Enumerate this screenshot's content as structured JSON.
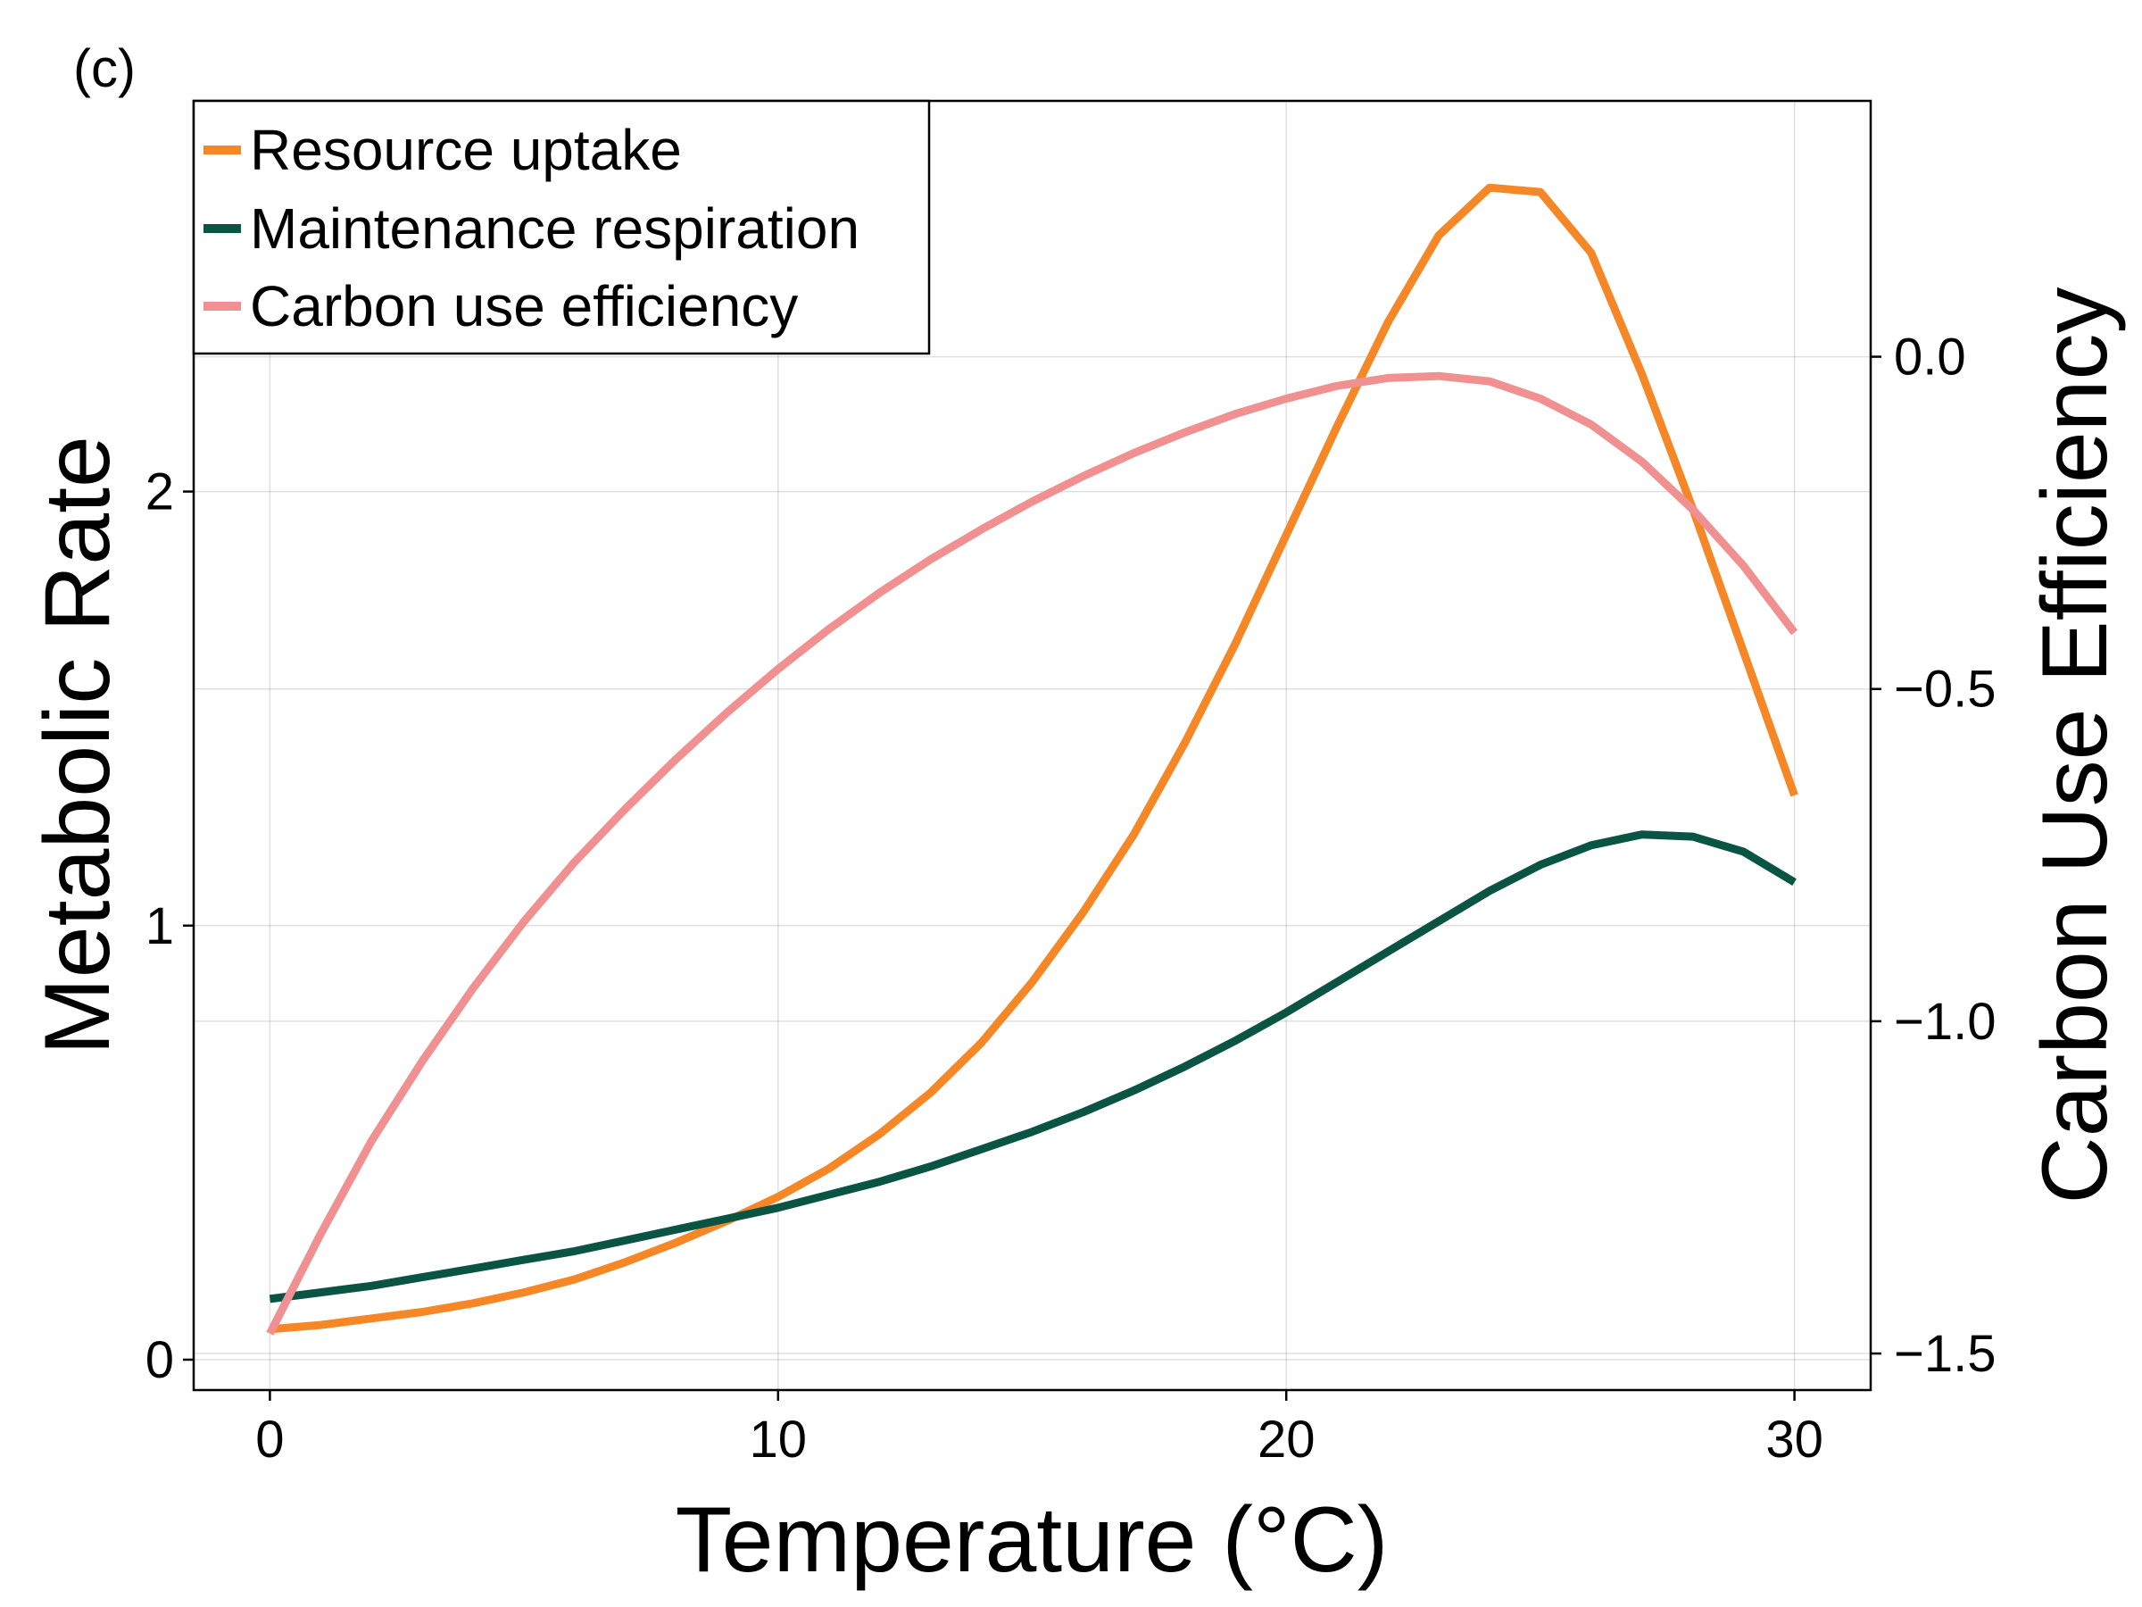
{
  "panel_label": "(c)",
  "chart_data": {
    "type": "line",
    "xlabel": "Temperature (°C)",
    "ylabel_left": "Metabolic Rate",
    "ylabel_right": "Carbon Use Efficiency",
    "xlim": [
      -1.5,
      31.5
    ],
    "ylim_left": [
      -0.07,
      2.9
    ],
    "ylim_right": [
      -1.555,
      0.385
    ],
    "x_ticks": [
      0,
      10,
      20,
      30
    ],
    "x_tick_labels": [
      "0",
      "10",
      "20",
      "30"
    ],
    "y_left_ticks": [
      0,
      1,
      2
    ],
    "y_left_tick_labels": [
      "0",
      "1",
      "2"
    ],
    "y_right_ticks": [
      0.0,
      -0.5,
      -1.0,
      -1.5
    ],
    "y_right_tick_labels": [
      "0.0",
      "−0.5",
      "−1.0",
      "−1.5"
    ],
    "grid": true,
    "legend_position": "top-left",
    "x": [
      0,
      1,
      2,
      3,
      4,
      5,
      6,
      7,
      8,
      9,
      10,
      11,
      12,
      13,
      14,
      15,
      16,
      17,
      18,
      19,
      20,
      21,
      22,
      23,
      24,
      25,
      26,
      27,
      28,
      29,
      30
    ],
    "series": [
      {
        "name": "Resource uptake",
        "axis": "left",
        "color": "#f58727",
        "values": [
          0.07,
          0.08,
          0.095,
          0.11,
          0.13,
          0.155,
          0.185,
          0.225,
          0.27,
          0.32,
          0.375,
          0.44,
          0.52,
          0.615,
          0.73,
          0.87,
          1.03,
          1.21,
          1.42,
          1.65,
          1.9,
          2.15,
          2.39,
          2.59,
          2.7,
          2.69,
          2.55,
          2.27,
          1.96,
          1.63,
          1.3
        ],
        "line_width": 9
      },
      {
        "name": "Maintenance respiration",
        "axis": "left",
        "color": "#0a5444",
        "values": [
          0.14,
          0.155,
          0.17,
          0.19,
          0.21,
          0.23,
          0.25,
          0.275,
          0.3,
          0.325,
          0.35,
          0.38,
          0.41,
          0.445,
          0.485,
          0.525,
          0.57,
          0.62,
          0.675,
          0.735,
          0.8,
          0.87,
          0.94,
          1.01,
          1.08,
          1.14,
          1.185,
          1.21,
          1.205,
          1.17,
          1.1
        ],
        "line_width": 9
      },
      {
        "name": "Carbon use efficiency",
        "axis": "right",
        "color": "#f09090",
        "values": [
          -1.47,
          -1.32,
          -1.18,
          -1.06,
          -0.95,
          -0.85,
          -0.76,
          -0.68,
          -0.605,
          -0.535,
          -0.47,
          -0.41,
          -0.355,
          -0.305,
          -0.26,
          -0.218,
          -0.18,
          -0.145,
          -0.114,
          -0.086,
          -0.063,
          -0.044,
          -0.032,
          -0.029,
          -0.037,
          -0.063,
          -0.102,
          -0.158,
          -0.23,
          -0.315,
          -0.415
        ],
        "line_width": 9
      }
    ]
  }
}
